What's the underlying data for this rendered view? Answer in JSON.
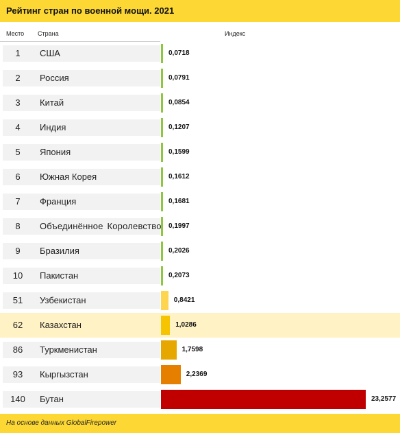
{
  "title": "Рейтинг стран по военной мощи. 2021",
  "columns": {
    "rank": "Место",
    "country": "Страна",
    "index": "Индекс"
  },
  "footer": "На основе данных GlobalFirepower",
  "colors": {
    "header_yellow": "#fdd835",
    "highlight_row": "#fff2c4",
    "row_gray": "#f2f2f2",
    "bar_green": "#8dc63f",
    "bar_light_yellow": "#fdd54f",
    "bar_yellow": "#f6c400",
    "bar_dark_yellow": "#e6a800",
    "bar_orange": "#e67e00",
    "bar_red": "#c00000"
  },
  "chart_data": {
    "type": "bar",
    "orientation": "horizontal",
    "title": "Рейтинг стран по военной мощи. 2021",
    "xlabel": "Индекс",
    "ylabel": "",
    "rows": [
      {
        "rank": "1",
        "country": "США",
        "value": 0.0718,
        "label": "0,0718",
        "color": "#8dc63f"
      },
      {
        "rank": "2",
        "country": "Россия",
        "value": 0.0791,
        "label": "0,0791",
        "color": "#8dc63f"
      },
      {
        "rank": "3",
        "country": "Китай",
        "value": 0.0854,
        "label": "0,0854",
        "color": "#8dc63f"
      },
      {
        "rank": "4",
        "country": "Индия",
        "value": 0.1207,
        "label": "0,1207",
        "color": "#8dc63f"
      },
      {
        "rank": "5",
        "country": "Япония",
        "value": 0.1599,
        "label": "0,1599",
        "color": "#8dc63f"
      },
      {
        "rank": "6",
        "country": "Южная Корея",
        "value": 0.1612,
        "label": "0,1612",
        "color": "#8dc63f"
      },
      {
        "rank": "7",
        "country": "Франция",
        "value": 0.1681,
        "label": "0,1681",
        "color": "#8dc63f"
      },
      {
        "rank": "8",
        "country": "Объединённое Королевство",
        "value": 0.1997,
        "label": "0,1997",
        "color": "#8dc63f"
      },
      {
        "rank": "9",
        "country": "Бразилия",
        "value": 0.2026,
        "label": "0,2026",
        "color": "#8dc63f"
      },
      {
        "rank": "10",
        "country": "Пакистан",
        "value": 0.2073,
        "label": "0,2073",
        "color": "#8dc63f"
      },
      {
        "rank": "51",
        "country": "Узбекистан",
        "value": 0.8421,
        "label": "0,8421",
        "color": "#fdd54f"
      },
      {
        "rank": "62",
        "country": "Казахстан",
        "value": 1.0286,
        "label": "1,0286",
        "color": "#f6c400",
        "highlight": true
      },
      {
        "rank": "86",
        "country": "Туркменистан",
        "value": 1.7598,
        "label": "1,7598",
        "color": "#e6a800"
      },
      {
        "rank": "93",
        "country": "Кыргызстан",
        "value": 2.2369,
        "label": "2,2369",
        "color": "#e67e00"
      },
      {
        "rank": "140",
        "country": "Бутан",
        "value": 23.2577,
        "label": "23,2577",
        "color": "#c00000"
      }
    ]
  }
}
